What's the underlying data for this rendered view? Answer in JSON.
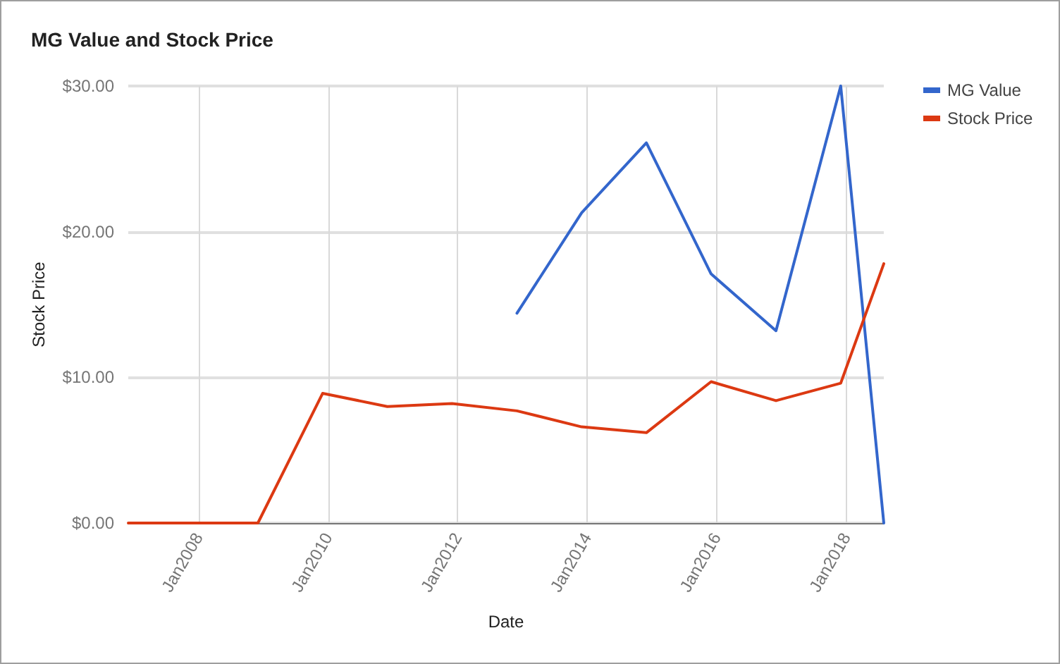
{
  "chart_data": {
    "type": "line",
    "title": "MG Value and Stock Price",
    "xlabel": "Date",
    "ylabel": "Stock Price",
    "x": [
      "2006-12",
      "2007-12",
      "2008-12",
      "2009-12",
      "2010-12",
      "2011-12",
      "2012-12",
      "2013-12",
      "2014-12",
      "2015-12",
      "2016-12",
      "2017-12",
      "2018-08"
    ],
    "series": [
      {
        "name": "MG Value",
        "color": "#3366cc",
        "values": [
          null,
          null,
          null,
          null,
          null,
          null,
          14.4,
          21.3,
          26.1,
          17.1,
          13.2,
          30.0,
          0
        ]
      },
      {
        "name": "Stock Price",
        "color": "#dc3912",
        "values": [
          0,
          0,
          0,
          8.9,
          8.0,
          8.2,
          7.7,
          6.6,
          6.2,
          9.7,
          8.4,
          9.6,
          17.8
        ]
      }
    ],
    "xlim": [
      "2006-12",
      "2018-08"
    ],
    "xticks": [
      {
        "value": "2008-01",
        "label": "Jan2008"
      },
      {
        "value": "2010-01",
        "label": "Jan2010"
      },
      {
        "value": "2012-01",
        "label": "Jan2012"
      },
      {
        "value": "2014-01",
        "label": "Jan2014"
      },
      {
        "value": "2016-01",
        "label": "Jan2016"
      },
      {
        "value": "2018-01",
        "label": "Jan2018"
      }
    ],
    "ylim": [
      0,
      30
    ],
    "yticks": [
      {
        "value": 0,
        "label": "$0.00"
      },
      {
        "value": 10,
        "label": "$10.00"
      },
      {
        "value": 20,
        "label": "$20.00"
      },
      {
        "value": 30,
        "label": "$30.00"
      }
    ],
    "grid": true,
    "legend": "top right",
    "marker": "none",
    "line_style": "solid"
  }
}
